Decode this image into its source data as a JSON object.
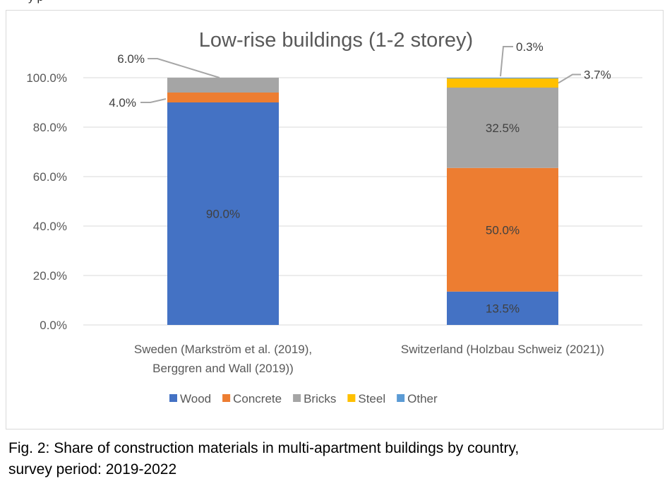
{
  "top_fragment": "y p",
  "caption": {
    "line1": "Fig. 2: Share of construction materials in multi-apartment buildings by country,",
    "line2": "survey period: 2019-2022"
  },
  "colors": {
    "Wood": "#4472C4",
    "Concrete": "#ED7D31",
    "Bricks": "#A5A5A5",
    "Steel": "#FFC000",
    "Other": "#5B9BD5"
  },
  "chart_data": {
    "type": "bar",
    "stacked": true,
    "title": "Low-rise buildings (1-2 storey)",
    "categories": [
      [
        "Sweden (Markström et al. (2019),",
        "Berggren and Wall (2019))"
      ],
      [
        "Switzerland (Holzbau Schweiz (2021))"
      ]
    ],
    "series": [
      {
        "name": "Wood",
        "values": [
          90.0,
          13.5
        ]
      },
      {
        "name": "Concrete",
        "values": [
          4.0,
          50.0
        ]
      },
      {
        "name": "Bricks",
        "values": [
          6.0,
          32.5
        ]
      },
      {
        "name": "Steel",
        "values": [
          0,
          3.7
        ]
      },
      {
        "name": "Other",
        "values": [
          0,
          0.3
        ]
      }
    ],
    "ylim": [
      0,
      100
    ],
    "yticks": [
      "0.0%",
      "20.0%",
      "40.0%",
      "60.0%",
      "80.0%",
      "100.0%"
    ],
    "grid": true,
    "legend": "bottom",
    "data_labels": [
      {
        "category": 0,
        "series": "Wood",
        "text": "90.0%",
        "placement": "inside"
      },
      {
        "category": 0,
        "series": "Concrete",
        "text": "4.0%",
        "placement": "callout-left"
      },
      {
        "category": 0,
        "series": "Bricks",
        "text": "6.0%",
        "placement": "callout-left-top"
      },
      {
        "category": 1,
        "series": "Wood",
        "text": "13.5%",
        "placement": "inside"
      },
      {
        "category": 1,
        "series": "Concrete",
        "text": "50.0%",
        "placement": "inside"
      },
      {
        "category": 1,
        "series": "Bricks",
        "text": "32.5%",
        "placement": "inside"
      },
      {
        "category": 1,
        "series": "Steel",
        "text": "3.7%",
        "placement": "callout-right"
      },
      {
        "category": 1,
        "series": "Other",
        "text": "0.3%",
        "placement": "callout-right-top"
      }
    ]
  }
}
